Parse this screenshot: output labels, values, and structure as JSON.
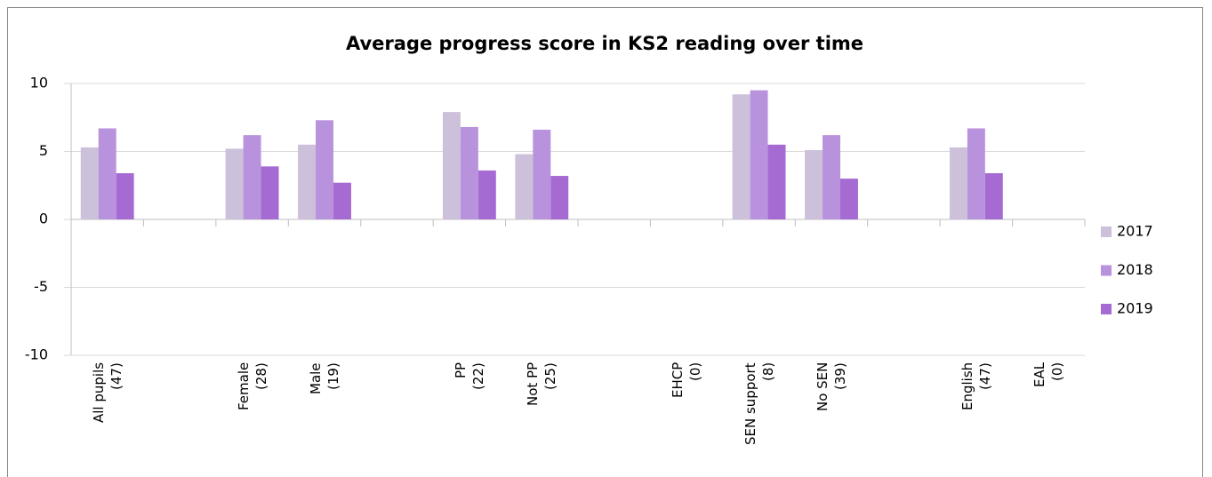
{
  "chart_data": {
    "type": "bar",
    "title": "Average progress score in KS2 reading over time",
    "categories": [
      "All pupils\n(47)",
      null,
      "Female\n(28)",
      "Male\n(19)",
      null,
      "PP\n(22)",
      "Not PP\n(25)",
      null,
      "EHCP\n(0)",
      "SEN support\n(8)",
      "No SEN\n(39)",
      null,
      "English\n(47)",
      "EAL\n(0)"
    ],
    "series": [
      {
        "name": "2017",
        "color": "#ccc0da",
        "values": [
          5.3,
          null,
          5.2,
          5.5,
          null,
          7.9,
          4.8,
          null,
          null,
          9.2,
          5.1,
          null,
          5.3,
          null
        ]
      },
      {
        "name": "2018",
        "color": "#b992dd",
        "values": [
          6.7,
          null,
          6.2,
          7.3,
          null,
          6.8,
          6.6,
          null,
          null,
          9.5,
          6.2,
          null,
          6.7,
          null
        ]
      },
      {
        "name": "2019",
        "color": "#a56bd3",
        "values": [
          3.4,
          null,
          3.9,
          2.7,
          null,
          3.6,
          3.2,
          null,
          null,
          5.5,
          3.0,
          null,
          3.4,
          null
        ]
      }
    ],
    "ylim": [
      -10,
      10
    ],
    "yticks": [
      -10,
      -5,
      0,
      5,
      10
    ],
    "grid": true,
    "legend": "right"
  }
}
